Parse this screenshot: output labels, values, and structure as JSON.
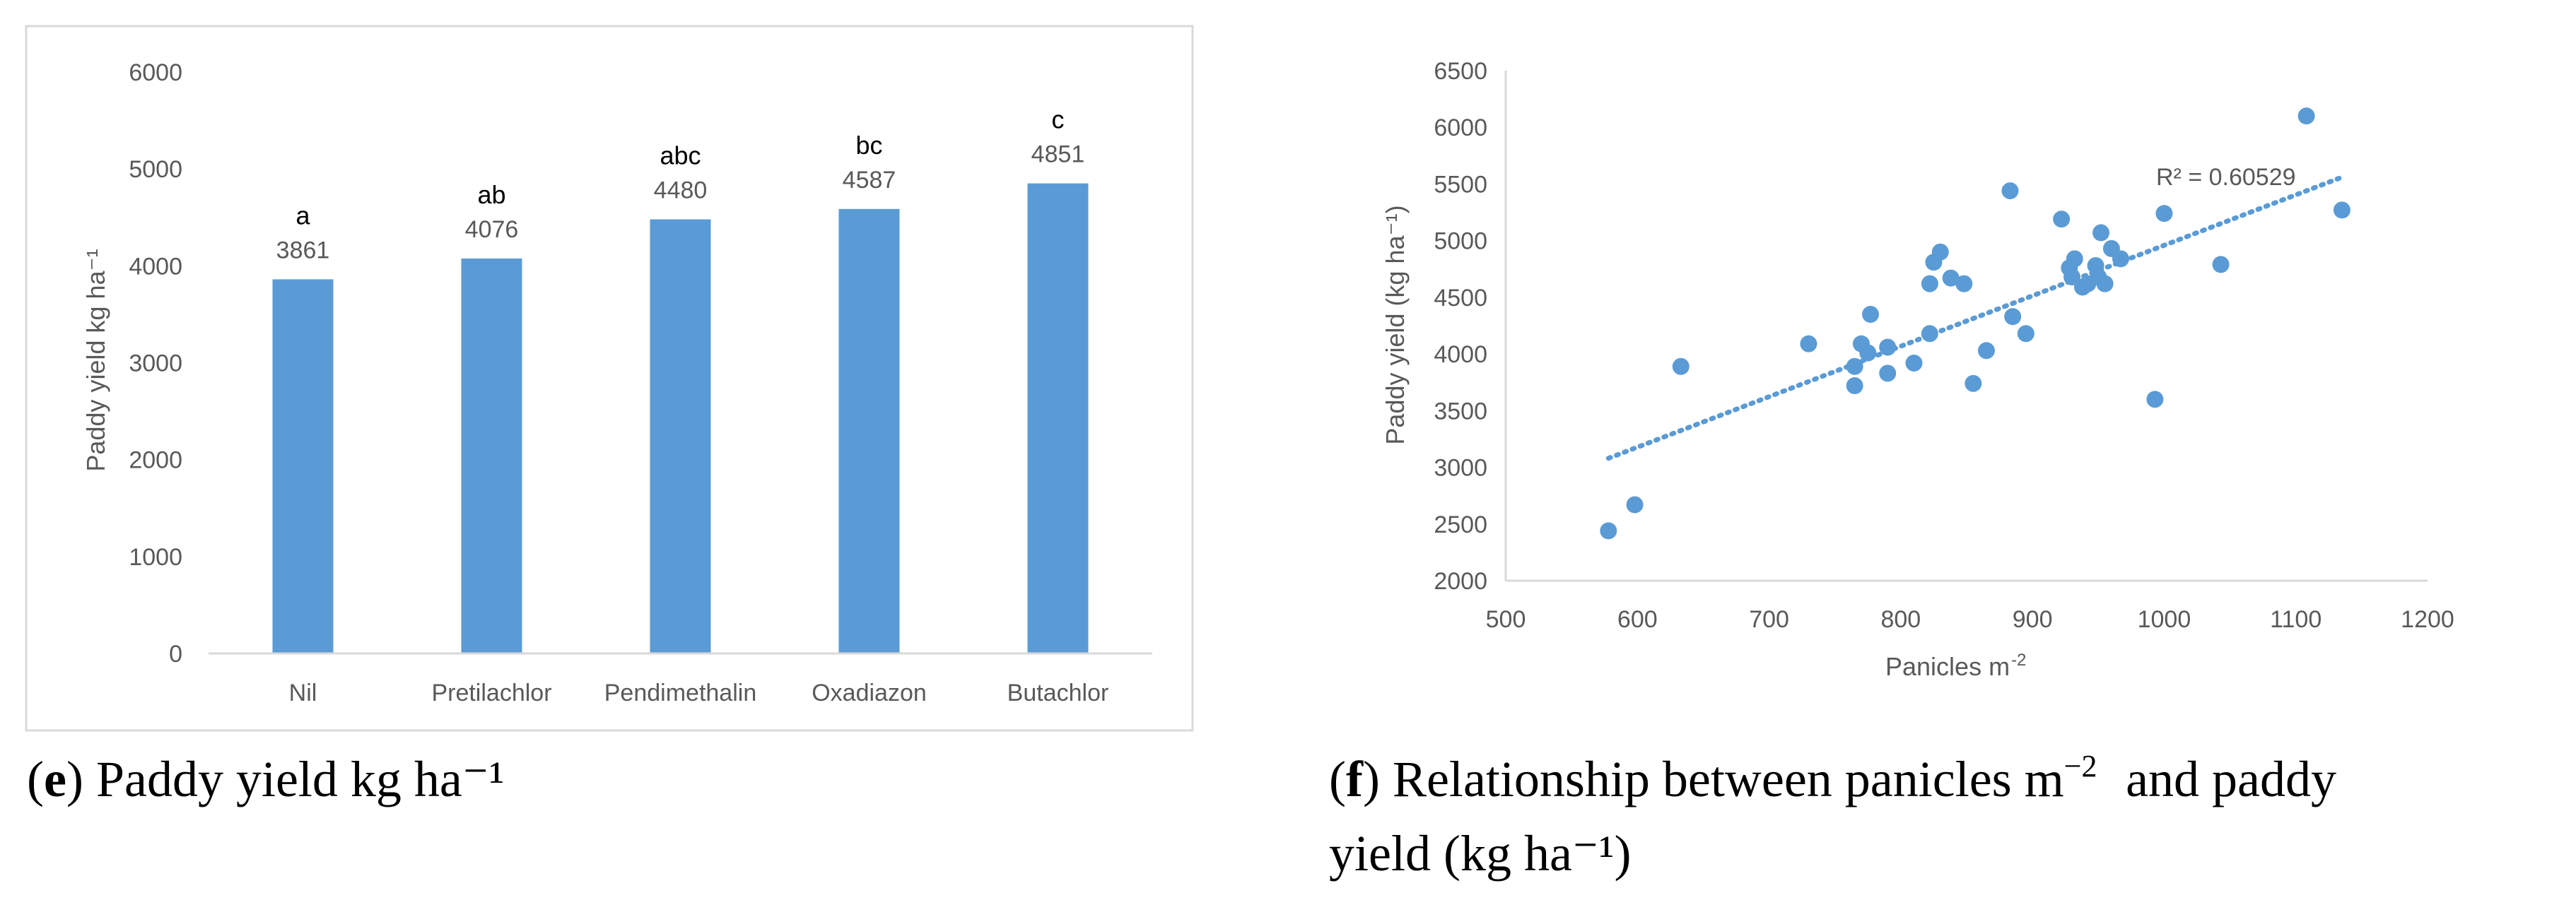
{
  "colors": {
    "bar": "#5b9bd5",
    "axis": "#d9d9d9",
    "text": "#595959",
    "trend": "#5b9bd5"
  },
  "chart_data": [
    {
      "type": "bar",
      "title": "",
      "categories": [
        "Nil",
        "Pretilachlor",
        "Pendimethalin",
        "Oxadiazon",
        "Butachlor"
      ],
      "values": [
        3861,
        4076,
        4480,
        4587,
        4851
      ],
      "value_labels": [
        "3861",
        "4076",
        "4480",
        "4587",
        "4851"
      ],
      "significance_letters": [
        "a",
        "ab",
        "abc",
        "bc",
        "c"
      ],
      "xlabel": "",
      "ylabel": "Paddy yield kg ha⁻¹",
      "ylim": [
        0,
        6000
      ],
      "yticks": [
        0,
        1000,
        2000,
        3000,
        4000,
        5000,
        6000
      ],
      "grid": false,
      "caption_letter": "e",
      "caption_text": "Paddy yield kg ha⁻¹"
    },
    {
      "type": "scatter",
      "title": "",
      "xlabel_main": "Panicles m",
      "xlabel_sup": "-2",
      "ylabel": "Paddy yield (kg ha⁻¹)",
      "xlim": [
        500,
        1200
      ],
      "ylim": [
        2000,
        6500
      ],
      "xticks": [
        500,
        600,
        700,
        800,
        900,
        1000,
        1100,
        1200
      ],
      "yticks": [
        2000,
        2500,
        3000,
        3500,
        4000,
        4500,
        5000,
        5500,
        6000,
        6500
      ],
      "points": [
        [
          578,
          2440
        ],
        [
          598,
          2670
        ],
        [
          633,
          3890
        ],
        [
          730,
          4090
        ],
        [
          765,
          3720
        ],
        [
          765,
          3890
        ],
        [
          770,
          4090
        ],
        [
          775,
          4010
        ],
        [
          777,
          4350
        ],
        [
          790,
          4060
        ],
        [
          790,
          3830
        ],
        [
          810,
          3920
        ],
        [
          822,
          4180
        ],
        [
          822,
          4620
        ],
        [
          825,
          4810
        ],
        [
          830,
          4900
        ],
        [
          838,
          4670
        ],
        [
          848,
          4620
        ],
        [
          855,
          3740
        ],
        [
          865,
          4030
        ],
        [
          883,
          5440
        ],
        [
          885,
          4330
        ],
        [
          895,
          4180
        ],
        [
          922,
          5190
        ],
        [
          928,
          4760
        ],
        [
          930,
          4680
        ],
        [
          932,
          4840
        ],
        [
          938,
          4590
        ],
        [
          942,
          4620
        ],
        [
          948,
          4780
        ],
        [
          950,
          4680
        ],
        [
          952,
          5070
        ],
        [
          955,
          4620
        ],
        [
          960,
          4930
        ],
        [
          967,
          4840
        ],
        [
          993,
          3600
        ],
        [
          1000,
          5240
        ],
        [
          1043,
          4790
        ],
        [
          1108,
          6100
        ],
        [
          1135,
          5270
        ]
      ],
      "trendline": {
        "x": [
          578,
          1135
        ],
        "y": [
          3080,
          5560
        ],
        "style": "dotted"
      },
      "r2_label": "R² = 0.60529",
      "caption_letter": "f",
      "caption_text_line1": "Relationship between panicles m",
      "caption_sup1": "−2",
      "caption_text_line1b": "and paddy",
      "caption_text_line2": "yield (kg ha⁻¹)"
    }
  ]
}
